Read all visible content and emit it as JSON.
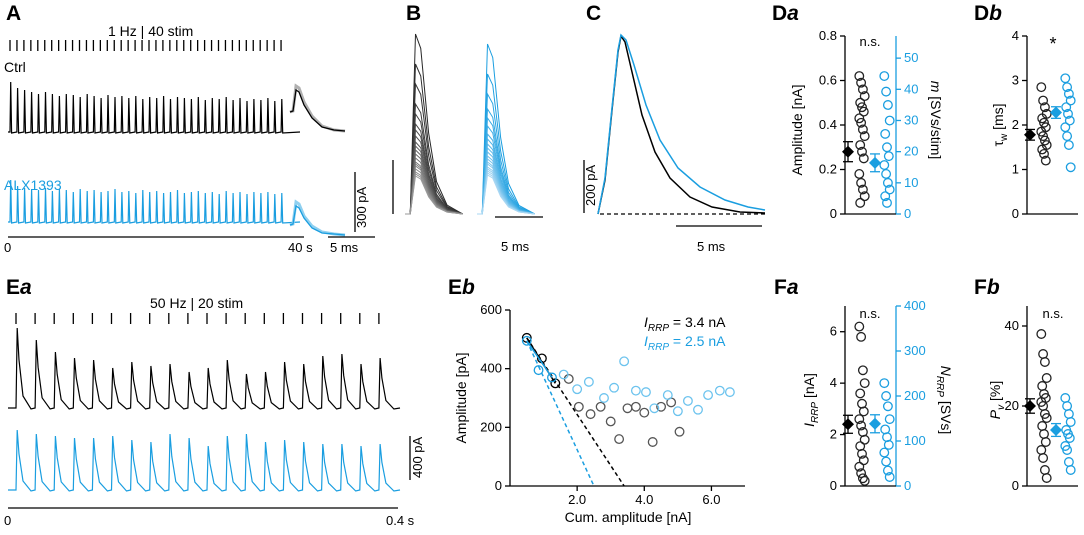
{
  "colors": {
    "ctrl": "#000000",
    "alx": "#1a9ee0",
    "ctrl_light": "#808080",
    "alx_light": "#8fd0f0",
    "mean_gray": "#555555"
  },
  "panel_labels": {
    "A": "A",
    "B": "B",
    "C": "C",
    "Da": {
      "main": "D",
      "sub": "a"
    },
    "Db": {
      "main": "D",
      "sub": "b"
    },
    "Ea": {
      "main": "E",
      "sub": "a"
    },
    "Eb": {
      "main": "E",
      "sub": "b"
    },
    "Fa": {
      "main": "F",
      "sub": "a"
    },
    "Fb": {
      "main": "F",
      "sub": "b"
    }
  },
  "panel_a": {
    "protocol": "1 Hz | 40 stim",
    "ctrl_label": "Ctrl",
    "alx_label": "ALX1393",
    "scale_amp": "300 pA",
    "scale_time": "5 ms",
    "time_start": "0",
    "time_end": "40 s"
  },
  "panel_b": {
    "scale_time": "5 ms"
  },
  "panel_c": {
    "scale_amp": "200 pA",
    "scale_time": "5 ms"
  },
  "panel_ea": {
    "protocol": "50 Hz | 20 stim",
    "scale_amp": "400 pA",
    "time_start": "0",
    "time_end": "0.4 s"
  },
  "chart_data": [
    {
      "id": "Da",
      "type": "scatter",
      "title": "",
      "ylabel": "Amplitude [nA]",
      "ylim": [
        0,
        0.8
      ],
      "yticks": [
        "0",
        "0.2",
        "0.4",
        "0.6",
        "0.8"
      ],
      "y2label_m": "m",
      "y2label_rest": " [SVs/stim]",
      "y2lim": [
        0,
        57.1
      ],
      "y2ticks": [
        "0",
        "10",
        "20",
        "30",
        "40",
        "50"
      ],
      "significance": "n.s.",
      "groups": [
        {
          "name": "Ctrl",
          "mean": 0.28,
          "sem": 0.045,
          "points": [
            0.62,
            0.59,
            0.56,
            0.53,
            0.5,
            0.48,
            0.46,
            0.43,
            0.41,
            0.38,
            0.35,
            0.31,
            0.28,
            0.25,
            0.18,
            0.14,
            0.11,
            0.08,
            0.05
          ]
        },
        {
          "name": "ALX1393",
          "mean": 0.23,
          "sem": 0.04,
          "points": [
            0.62,
            0.55,
            0.49,
            0.42,
            0.36,
            0.3,
            0.26,
            0.22,
            0.18,
            0.14,
            0.11,
            0.08,
            0.05
          ]
        }
      ]
    },
    {
      "id": "Db",
      "type": "scatter",
      "ylabel_main": "τ",
      "ylabel_sub": "w",
      "ylabel_unit": " [ms]",
      "ylim": [
        0,
        4
      ],
      "yticks": [
        "0",
        "1",
        "2",
        "3",
        "4"
      ],
      "significance": "*",
      "groups": [
        {
          "name": "Ctrl",
          "mean": 1.78,
          "sem": 0.12,
          "points": [
            2.85,
            2.55,
            2.4,
            2.25,
            2.15,
            2.05,
            1.95,
            1.85,
            1.75,
            1.65,
            1.55,
            1.45,
            1.35,
            1.2
          ]
        },
        {
          "name": "ALX1393",
          "mean": 2.28,
          "sem": 0.13,
          "points": [
            3.05,
            2.85,
            2.7,
            2.55,
            2.4,
            2.25,
            2.1,
            1.95,
            1.75,
            1.55,
            1.05
          ]
        }
      ]
    },
    {
      "id": "Eb",
      "type": "scatter",
      "xlabel": "Cum. amplitude [nA]",
      "ylabel": "Amplitude [pA]",
      "xlim": [
        0,
        7
      ],
      "ylim": [
        0,
        600
      ],
      "xticks": [
        "2.0",
        "4.0",
        "6.0"
      ],
      "xtick_values": [
        2,
        4,
        6
      ],
      "yticks": [
        "0",
        "200",
        "400",
        "600"
      ],
      "legend": {
        "ctrl": {
          "italic": "I",
          "sub": "RRP",
          "rest": " = 3.4 nA"
        },
        "alx": {
          "italic": "I",
          "sub": "RRP",
          "rest": " = 2.5 nA"
        }
      },
      "series": [
        {
          "name": "Ctrl",
          "x": [
            0.5,
            0.95,
            1.35,
            1.75,
            2.05,
            2.4,
            2.7,
            3.0,
            3.25,
            3.5,
            3.75,
            4.0,
            4.25,
            4.5,
            4.8,
            5.05
          ],
          "y": [
            505,
            435,
            350,
            365,
            270,
            245,
            270,
            220,
            160,
            265,
            270,
            250,
            150,
            270,
            285,
            185
          ],
          "fit": {
            "x": [
              0.5,
              3.4
            ],
            "y": [
              505,
              0
            ]
          }
        },
        {
          "name": "ALX1393",
          "x": [
            0.5,
            0.85,
            1.25,
            1.6,
            2.0,
            2.35,
            2.8,
            3.1,
            3.4,
            3.75,
            4.05,
            4.3,
            4.7,
            5.0,
            5.3,
            5.6,
            5.9,
            6.25,
            6.55
          ],
          "y": [
            495,
            395,
            370,
            380,
            330,
            355,
            300,
            335,
            425,
            325,
            320,
            265,
            310,
            255,
            290,
            260,
            310,
            325,
            320
          ],
          "fit": {
            "x": [
              0.5,
              2.5
            ],
            "y": [
              495,
              0
            ]
          }
        }
      ]
    },
    {
      "id": "Fa",
      "type": "scatter",
      "ylabel_main": "I",
      "ylabel_sub": "RRP",
      "ylabel_unit": " [nA]",
      "ylim": [
        0,
        7
      ],
      "yticks": [
        "0",
        "2",
        "4",
        "6"
      ],
      "y2label_main": "N",
      "y2label_sub": "RRP",
      "y2label_unit": " [SVs]",
      "y2lim": [
        0,
        400
      ],
      "y2ticks": [
        "0",
        "100",
        "200",
        "300",
        "400"
      ],
      "significance": "n.s.",
      "groups": [
        {
          "name": "Ctrl",
          "mean": 2.4,
          "sem": 0.35,
          "points": [
            6.2,
            5.8,
            4.5,
            4.0,
            3.6,
            3.2,
            2.9,
            2.6,
            2.35,
            2.1,
            1.8,
            1.55,
            1.25,
            1.0,
            0.75,
            0.5,
            0.3,
            0.2
          ]
        },
        {
          "name": "ALX1393",
          "mean": 2.42,
          "sem": 0.35,
          "points": [
            4.0,
            3.5,
            3.1,
            2.6,
            2.2,
            1.9,
            1.6,
            1.3,
            0.95,
            0.6,
            0.35
          ]
        }
      ]
    },
    {
      "id": "Fb",
      "type": "scatter",
      "ylabel_main": "P",
      "ylabel_sub": "v",
      "ylabel_unit": " [%]",
      "ylim": [
        0,
        45
      ],
      "yticks": [
        "0",
        "20",
        "40"
      ],
      "significance": "n.s.",
      "groups": [
        {
          "name": "Ctrl",
          "mean": 20,
          "sem": 1.8,
          "points": [
            38,
            33,
            31,
            27,
            25,
            23,
            22,
            21,
            20,
            18,
            17,
            15,
            13,
            11,
            9,
            7,
            4,
            2
          ]
        },
        {
          "name": "ALX1393",
          "mean": 14,
          "sem": 1.6,
          "points": [
            22,
            20,
            18,
            16,
            14,
            13,
            12,
            10,
            9,
            6,
            4
          ]
        }
      ]
    }
  ]
}
